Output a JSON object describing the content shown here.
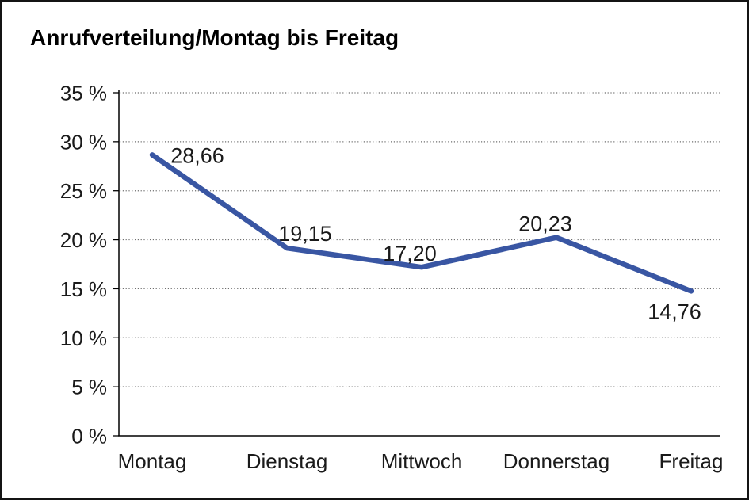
{
  "window": {
    "background_color": "#ffffff",
    "border_color": "#141414"
  },
  "chart_data": {
    "type": "line",
    "title": "Anrufverteilung/Montag bis Freitag",
    "categories": [
      "Montag",
      "Dienstag",
      "Mittwoch",
      "Donnerstag",
      "Freitag"
    ],
    "series": [
      {
        "name": "Anrufverteilung",
        "values": [
          28.66,
          19.15,
          17.2,
          20.23,
          14.76
        ],
        "point_labels": [
          "28,66",
          "19,15",
          "17,20",
          "20,23",
          "14,76"
        ]
      }
    ],
    "xlabel": "",
    "ylabel": "",
    "ylim": [
      0,
      35
    ],
    "ytick_step": 5,
    "ytick_labels": [
      "0 %",
      "5 %",
      "10 %",
      "15 %",
      "20 %",
      "25 %",
      "30 %",
      "35 %"
    ],
    "grid": "horizontal-dotted",
    "legend_position": "none",
    "colors": {
      "line": "#3956A3",
      "axis": "#000000",
      "gridline": "#6e6e6e",
      "text": "#1a1a1a",
      "title_text": "#000000"
    }
  }
}
